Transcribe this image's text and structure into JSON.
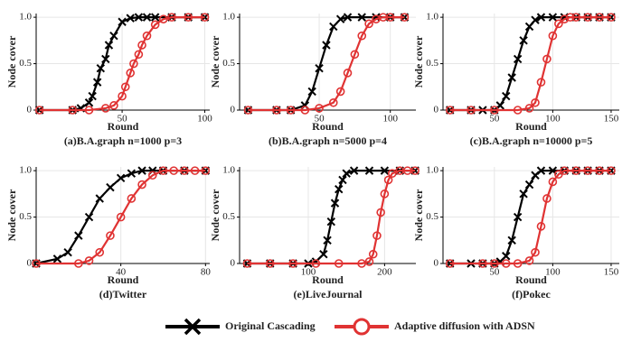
{
  "legend": [
    {
      "name": "Original Cascading",
      "color": "#000000"
    },
    {
      "name": "Adaptive diffusion with ADSN",
      "color": "#e03333"
    }
  ],
  "chart_data": [
    {
      "type": "line",
      "caption": "(a)B.A.graph n=1000 p=3",
      "xlabel": "Round",
      "ylabel": "Node cover",
      "grid": true,
      "xlim": [
        -2,
        103
      ],
      "ylim": [
        0,
        1.04
      ],
      "xticks": [
        50,
        100
      ],
      "yticks": [
        0,
        0.5,
        {
          "value": 1,
          "label": "1.0"
        }
      ],
      "series": [
        {
          "x": [
            0,
            20,
            25,
            30,
            32,
            35,
            37,
            40,
            42,
            45,
            50,
            55,
            60,
            65,
            70,
            80,
            90,
            100
          ],
          "values": [
            0,
            0,
            0.02,
            0.08,
            0.15,
            0.3,
            0.45,
            0.55,
            0.7,
            0.8,
            0.95,
            0.99,
            1,
            1,
            1,
            1,
            1,
            1
          ]
        },
        {
          "x": [
            0,
            20,
            30,
            40,
            45,
            50,
            52,
            55,
            57,
            60,
            62,
            65,
            70,
            75,
            80,
            90,
            100
          ],
          "values": [
            0,
            0,
            0,
            0.02,
            0.05,
            0.15,
            0.25,
            0.4,
            0.5,
            0.6,
            0.7,
            0.8,
            0.92,
            0.98,
            1,
            1,
            1
          ]
        }
      ]
    },
    {
      "type": "line",
      "caption": "(b)B.A.graph n=5000 p=4",
      "xlabel": "Round",
      "ylabel": "Node cover",
      "grid": true,
      "xlim": [
        -6,
        118
      ],
      "ylim": [
        0,
        1.04
      ],
      "xticks": [
        50,
        100
      ],
      "yticks": [
        0,
        0.5,
        {
          "value": 1,
          "label": "1.0"
        }
      ],
      "series": [
        {
          "x": [
            0,
            20,
            30,
            40,
            45,
            50,
            55,
            60,
            65,
            70,
            80,
            90,
            100,
            110
          ],
          "values": [
            0,
            0,
            0,
            0.05,
            0.2,
            0.45,
            0.7,
            0.9,
            0.98,
            1,
            1,
            1,
            1,
            1
          ]
        },
        {
          "x": [
            0,
            20,
            30,
            40,
            50,
            60,
            65,
            70,
            75,
            80,
            85,
            90,
            95,
            100,
            110
          ],
          "values": [
            0,
            0,
            0,
            0,
            0.02,
            0.08,
            0.2,
            0.4,
            0.6,
            0.8,
            0.93,
            0.98,
            1,
            1,
            1
          ]
        }
      ]
    },
    {
      "type": "line",
      "caption": "(c)B.A.graph n=10000 p=5",
      "xlabel": "Round",
      "ylabel": "Node cover",
      "grid": true,
      "xlim": [
        6,
        157
      ],
      "ylim": [
        0,
        1.04
      ],
      "xticks": [
        50,
        100,
        150
      ],
      "yticks": [
        0,
        0.5,
        {
          "value": 1,
          "label": "1.0"
        }
      ],
      "series": [
        {
          "x": [
            12,
            30,
            40,
            50,
            55,
            60,
            65,
            70,
            75,
            80,
            85,
            90,
            100,
            110,
            120,
            130,
            140,
            150
          ],
          "values": [
            0,
            0,
            0,
            0,
            0.05,
            0.15,
            0.35,
            0.55,
            0.75,
            0.9,
            0.97,
            1,
            1,
            1,
            1,
            1,
            1,
            1
          ]
        },
        {
          "x": [
            12,
            30,
            50,
            70,
            80,
            85,
            90,
            95,
            100,
            105,
            110,
            115,
            120,
            130,
            140,
            150
          ],
          "values": [
            0,
            0,
            0,
            0,
            0.02,
            0.08,
            0.3,
            0.55,
            0.8,
            0.93,
            0.98,
            1,
            1,
            1,
            1,
            1
          ]
        }
      ]
    },
    {
      "type": "line",
      "caption": "(d)Twitter",
      "xlabel": "Round",
      "ylabel": "Node cover",
      "grid": true,
      "xlim": [
        0,
        82
      ],
      "ylim": [
        0,
        1.04
      ],
      "xticks": [
        40,
        80
      ],
      "yticks": [
        0,
        0.5,
        {
          "value": 1,
          "label": "1.0"
        }
      ],
      "series": [
        {
          "x": [
            0,
            10,
            15,
            20,
            25,
            30,
            35,
            40,
            45,
            50,
            55,
            60,
            70,
            80
          ],
          "values": [
            0,
            0.05,
            0.12,
            0.3,
            0.5,
            0.7,
            0.82,
            0.92,
            0.97,
            1,
            1,
            1,
            1,
            1
          ]
        },
        {
          "x": [
            0,
            20,
            25,
            30,
            35,
            40,
            45,
            50,
            55,
            60,
            65,
            70,
            75,
            80
          ],
          "values": [
            0,
            0,
            0.03,
            0.12,
            0.3,
            0.5,
            0.7,
            0.85,
            0.95,
            1,
            1,
            1,
            1,
            1
          ]
        }
      ]
    },
    {
      "type": "line",
      "caption": "(e)LiveJournal",
      "xlabel": "Round",
      "ylabel": "Node cover",
      "grid": true,
      "xlim": [
        10,
        241
      ],
      "ylim": [
        0,
        1.04
      ],
      "xticks": [
        100,
        200
      ],
      "yticks": [
        0,
        0.5,
        {
          "value": 1,
          "label": "1.0"
        }
      ],
      "series": [
        {
          "x": [
            20,
            50,
            80,
            100,
            110,
            120,
            125,
            130,
            135,
            140,
            145,
            150,
            160,
            180,
            200,
            220,
            240
          ],
          "values": [
            0,
            0,
            0,
            0,
            0.02,
            0.1,
            0.25,
            0.45,
            0.65,
            0.8,
            0.9,
            0.97,
            1,
            1,
            1,
            1,
            1
          ]
        },
        {
          "x": [
            20,
            50,
            80,
            110,
            140,
            170,
            180,
            185,
            190,
            195,
            200,
            205,
            210,
            220,
            230,
            240
          ],
          "values": [
            0,
            0,
            0,
            0,
            0,
            0,
            0.02,
            0.1,
            0.3,
            0.55,
            0.75,
            0.9,
            0.97,
            1,
            1,
            1
          ]
        }
      ]
    },
    {
      "type": "line",
      "caption": "(f)Pokec",
      "xlabel": "Round",
      "ylabel": "Node cover",
      "grid": true,
      "xlim": [
        6,
        157
      ],
      "ylim": [
        0,
        1.04
      ],
      "xticks": [
        50,
        100,
        150
      ],
      "yticks": [
        0,
        0.5,
        {
          "value": 1,
          "label": "1.0"
        }
      ],
      "series": [
        {
          "x": [
            12,
            30,
            40,
            50,
            55,
            60,
            65,
            70,
            75,
            80,
            85,
            90,
            100,
            110,
            120,
            130,
            140,
            150
          ],
          "values": [
            0,
            0,
            0,
            0,
            0.02,
            0.08,
            0.25,
            0.5,
            0.75,
            0.85,
            0.95,
            1,
            1,
            1,
            1,
            1,
            1,
            1
          ]
        },
        {
          "x": [
            12,
            40,
            50,
            60,
            70,
            80,
            85,
            90,
            95,
            100,
            105,
            110,
            120,
            130,
            140,
            150
          ],
          "values": [
            0,
            0,
            0,
            0,
            0,
            0.03,
            0.12,
            0.4,
            0.7,
            0.88,
            0.96,
            1,
            1,
            1,
            1,
            1
          ]
        }
      ]
    }
  ]
}
